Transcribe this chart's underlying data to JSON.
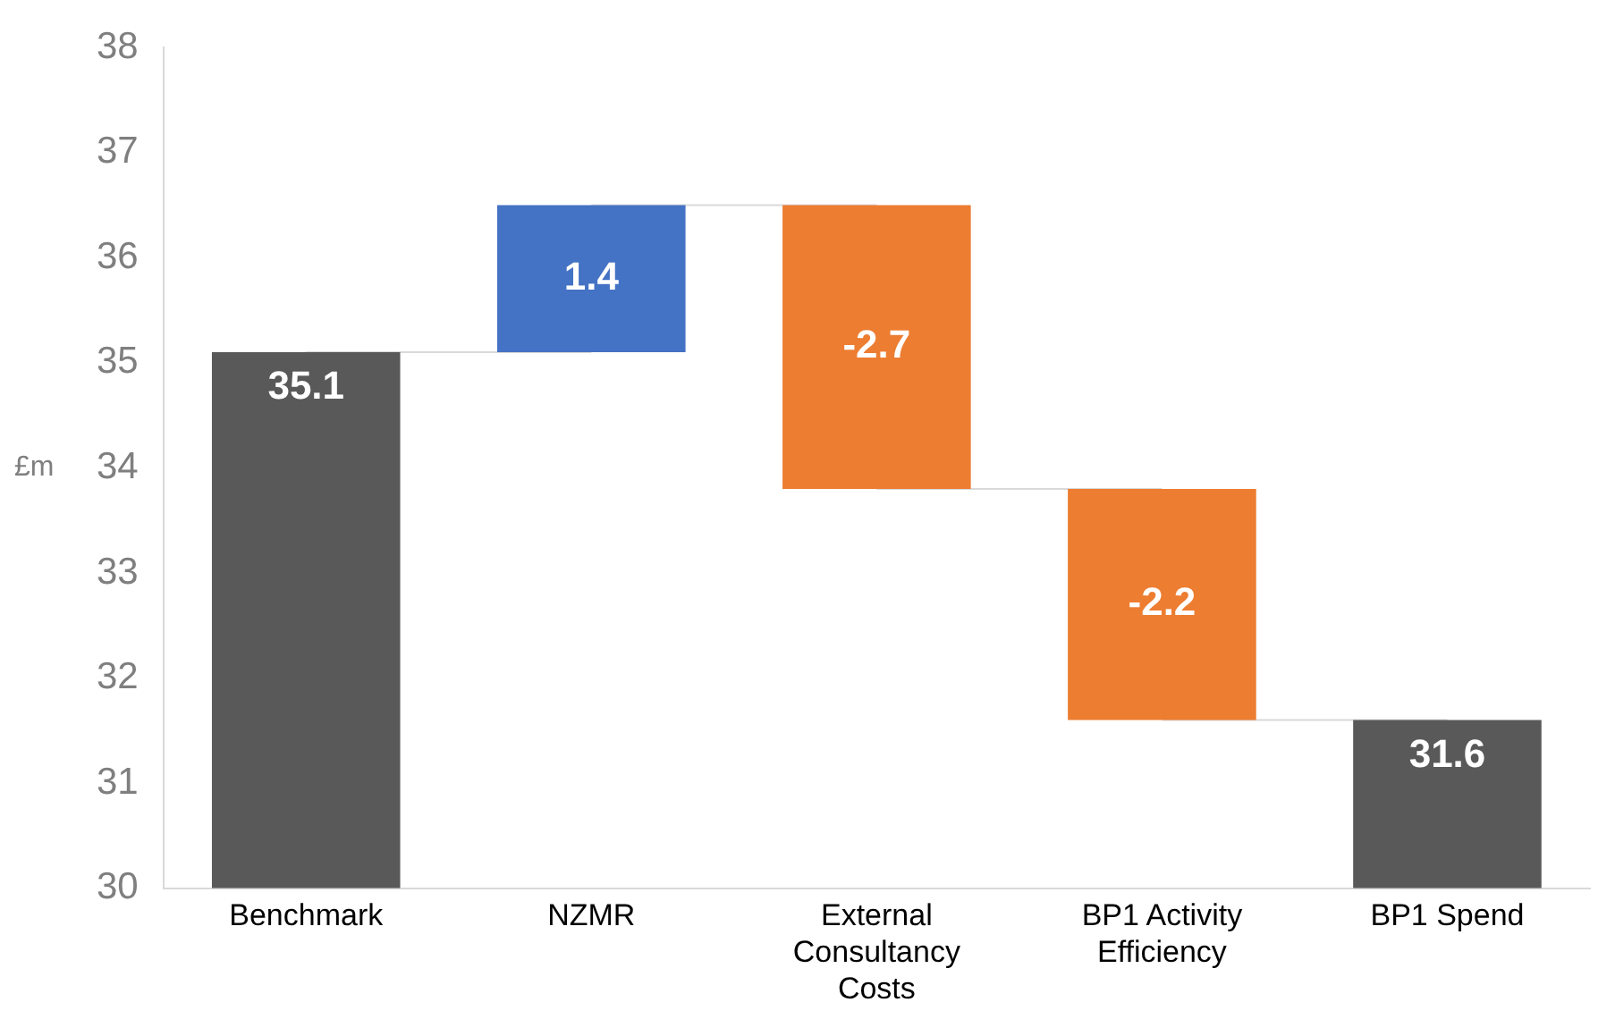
{
  "chart_data": {
    "type": "bar",
    "ylabel": "£m",
    "categories": [
      "Benchmark",
      "NZMR",
      "External Consultancy Costs",
      "BP1 Activity Efficiency",
      "BP1 Spend"
    ],
    "series": [
      {
        "values": [
          35.1,
          1.4,
          -2.7,
          -2.2,
          31.6
        ],
        "base": [
          null,
          35.1,
          36.5,
          33.8,
          null
        ],
        "colors": [
          "#595959",
          "#4472c4",
          "#ed7d31",
          "#ed7d31",
          "#595959"
        ],
        "value_labels": [
          "35.1",
          "1.4",
          "-2.7",
          "-2.2",
          "31.6"
        ]
      },
      {
        "type": "line",
        "color": "#d9d9d9",
        "values": [
          35.1,
          35.1,
          null,
          null,
          null
        ]
      },
      {
        "type": "line",
        "color": "#d9d9d9",
        "values": [
          null,
          36.5,
          36.5,
          null,
          null
        ]
      },
      {
        "type": "line",
        "color": "#d9d9d9",
        "values": [
          null,
          null,
          33.8,
          33.8,
          null
        ]
      },
      {
        "type": "line",
        "color": "#d9d9d9",
        "values": [
          null,
          null,
          null,
          31.6,
          31.6
        ]
      }
    ],
    "ylim": [
      30,
      38
    ],
    "yticks": [
      30,
      31,
      32,
      33,
      34,
      35,
      36,
      37,
      38
    ],
    "grid": false,
    "legend": false,
    "marker": "none"
  }
}
